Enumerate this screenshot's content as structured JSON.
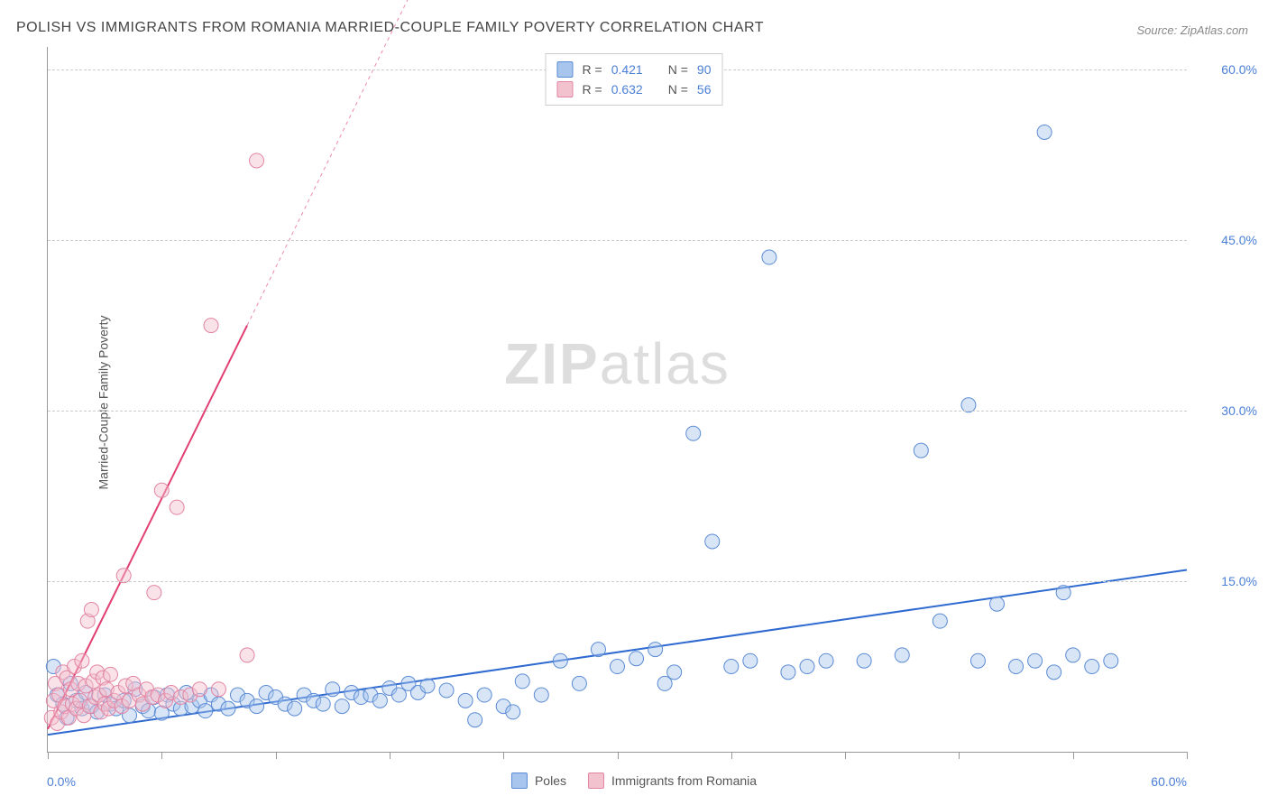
{
  "title": "POLISH VS IMMIGRANTS FROM ROMANIA MARRIED-COUPLE FAMILY POVERTY CORRELATION CHART",
  "source": "Source: ZipAtlas.com",
  "ylabel": "Married-Couple Family Poverty",
  "watermark_bold": "ZIP",
  "watermark_light": "atlas",
  "chart": {
    "type": "scatter",
    "background_color": "#ffffff",
    "grid_color": "#cccccc",
    "axis_color": "#999999",
    "tick_label_color": "#4a7fd6",
    "xlim": [
      0,
      60
    ],
    "ylim": [
      0,
      62
    ],
    "ytick_step": 15,
    "yticks": [
      15,
      30,
      45,
      60
    ],
    "ytick_labels": [
      "15.0%",
      "30.0%",
      "45.0%",
      "60.0%"
    ],
    "xtick_positions": [
      0,
      6,
      12,
      18,
      24,
      30,
      36,
      42,
      48,
      54,
      60
    ],
    "x_start_label": "0.0%",
    "x_end_label": "60.0%",
    "marker_radius": 8,
    "marker_opacity": 0.45,
    "line_width": 2,
    "series": [
      {
        "name": "Poles",
        "legend_label": "Poles",
        "fill_color": "#a8c5ed",
        "stroke_color": "#5b8bd4",
        "line_color": "#2f6ad1",
        "trend": {
          "x1": 0,
          "y1": 1.5,
          "x2": 60,
          "y2": 16.0,
          "dashed": false
        },
        "stats": {
          "R_label": "R =",
          "R": "0.421",
          "N_label": "N =",
          "N": "90"
        },
        "points": [
          [
            0.3,
            7.5
          ],
          [
            0.5,
            5.0
          ],
          [
            0.8,
            4.2
          ],
          [
            1.0,
            3.0
          ],
          [
            1.2,
            6.0
          ],
          [
            1.5,
            4.5
          ],
          [
            1.8,
            3.8
          ],
          [
            2.0,
            5.2
          ],
          [
            2.3,
            4.0
          ],
          [
            2.6,
            3.5
          ],
          [
            3.0,
            5.0
          ],
          [
            3.3,
            4.2
          ],
          [
            3.6,
            3.8
          ],
          [
            4.0,
            4.5
          ],
          [
            4.3,
            3.2
          ],
          [
            4.6,
            5.5
          ],
          [
            5.0,
            4.0
          ],
          [
            5.3,
            3.6
          ],
          [
            5.6,
            4.8
          ],
          [
            6.0,
            3.4
          ],
          [
            6.3,
            5.0
          ],
          [
            6.6,
            4.2
          ],
          [
            7.0,
            3.8
          ],
          [
            7.3,
            5.2
          ],
          [
            7.6,
            4.0
          ],
          [
            8.0,
            4.5
          ],
          [
            8.3,
            3.6
          ],
          [
            8.6,
            5.0
          ],
          [
            9.0,
            4.2
          ],
          [
            9.5,
            3.8
          ],
          [
            10.0,
            5.0
          ],
          [
            10.5,
            4.5
          ],
          [
            11.0,
            4.0
          ],
          [
            11.5,
            5.2
          ],
          [
            12.0,
            4.8
          ],
          [
            12.5,
            4.2
          ],
          [
            13.0,
            3.8
          ],
          [
            13.5,
            5.0
          ],
          [
            14.0,
            4.5
          ],
          [
            14.5,
            4.2
          ],
          [
            15.0,
            5.5
          ],
          [
            15.5,
            4.0
          ],
          [
            16.0,
            5.2
          ],
          [
            16.5,
            4.8
          ],
          [
            17.0,
            5.0
          ],
          [
            17.5,
            4.5
          ],
          [
            18.0,
            5.6
          ],
          [
            18.5,
            5.0
          ],
          [
            19.0,
            6.0
          ],
          [
            19.5,
            5.2
          ],
          [
            20.0,
            5.8
          ],
          [
            21.0,
            5.4
          ],
          [
            22.0,
            4.5
          ],
          [
            22.5,
            2.8
          ],
          [
            23.0,
            5.0
          ],
          [
            24.0,
            4.0
          ],
          [
            24.5,
            3.5
          ],
          [
            25.0,
            6.2
          ],
          [
            26.0,
            5.0
          ],
          [
            27.0,
            8.0
          ],
          [
            28.0,
            6.0
          ],
          [
            29.0,
            9.0
          ],
          [
            30.0,
            7.5
          ],
          [
            31.0,
            8.2
          ],
          [
            32.0,
            9.0
          ],
          [
            32.5,
            6.0
          ],
          [
            33.0,
            7.0
          ],
          [
            34.0,
            28.0
          ],
          [
            35.0,
            18.5
          ],
          [
            36.0,
            7.5
          ],
          [
            37.0,
            8.0
          ],
          [
            38.0,
            43.5
          ],
          [
            39.0,
            7.0
          ],
          [
            40.0,
            7.5
          ],
          [
            41.0,
            8.0
          ],
          [
            43.0,
            8.0
          ],
          [
            45.0,
            8.5
          ],
          [
            46.0,
            26.5
          ],
          [
            47.0,
            11.5
          ],
          [
            48.5,
            30.5
          ],
          [
            49.0,
            8.0
          ],
          [
            50.0,
            13.0
          ],
          [
            51.0,
            7.5
          ],
          [
            52.0,
            8.0
          ],
          [
            53.0,
            7.0
          ],
          [
            53.5,
            14.0
          ],
          [
            54.0,
            8.5
          ],
          [
            55.0,
            7.5
          ],
          [
            56.0,
            8.0
          ],
          [
            52.5,
            54.5
          ]
        ]
      },
      {
        "name": "Immigrants from Romania",
        "legend_label": "Immigrants from Romania",
        "fill_color": "#f2c2cf",
        "stroke_color": "#e384a3",
        "line_color": "#e23f72",
        "trend": {
          "x1": 0,
          "y1": 2.0,
          "x2": 10.5,
          "y2": 37.5,
          "dashed_extend_to": [
            19.5,
            68
          ]
        },
        "stats": {
          "R_label": "R =",
          "R": "0.632",
          "N_label": "N =",
          "N": "56"
        },
        "points": [
          [
            0.2,
            3.0
          ],
          [
            0.3,
            4.5
          ],
          [
            0.4,
            6.0
          ],
          [
            0.5,
            2.5
          ],
          [
            0.6,
            5.0
          ],
          [
            0.7,
            3.5
          ],
          [
            0.8,
            7.0
          ],
          [
            0.9,
            4.0
          ],
          [
            1.0,
            6.5
          ],
          [
            1.1,
            3.0
          ],
          [
            1.2,
            5.5
          ],
          [
            1.3,
            4.2
          ],
          [
            1.4,
            7.5
          ],
          [
            1.5,
            3.8
          ],
          [
            1.6,
            6.0
          ],
          [
            1.7,
            4.5
          ],
          [
            1.8,
            8.0
          ],
          [
            1.9,
            3.2
          ],
          [
            2.0,
            5.8
          ],
          [
            2.1,
            11.5
          ],
          [
            2.2,
            4.0
          ],
          [
            2.3,
            12.5
          ],
          [
            2.4,
            6.2
          ],
          [
            2.5,
            4.8
          ],
          [
            2.6,
            7.0
          ],
          [
            2.7,
            5.0
          ],
          [
            2.8,
            3.5
          ],
          [
            2.9,
            6.5
          ],
          [
            3.0,
            4.2
          ],
          [
            3.1,
            5.5
          ],
          [
            3.2,
            3.8
          ],
          [
            3.3,
            6.8
          ],
          [
            3.5,
            4.5
          ],
          [
            3.7,
            5.2
          ],
          [
            3.9,
            4.0
          ],
          [
            4.0,
            15.5
          ],
          [
            4.1,
            5.8
          ],
          [
            4.3,
            4.5
          ],
          [
            4.5,
            6.0
          ],
          [
            4.8,
            5.0
          ],
          [
            5.0,
            4.2
          ],
          [
            5.2,
            5.5
          ],
          [
            5.5,
            4.8
          ],
          [
            5.6,
            14.0
          ],
          [
            5.8,
            5.0
          ],
          [
            6.0,
            23.0
          ],
          [
            6.2,
            4.5
          ],
          [
            6.5,
            5.2
          ],
          [
            6.8,
            21.5
          ],
          [
            7.0,
            4.8
          ],
          [
            7.5,
            5.0
          ],
          [
            8.0,
            5.5
          ],
          [
            8.6,
            37.5
          ],
          [
            9.0,
            5.5
          ],
          [
            10.5,
            8.5
          ],
          [
            11.0,
            52.0
          ]
        ]
      }
    ]
  }
}
